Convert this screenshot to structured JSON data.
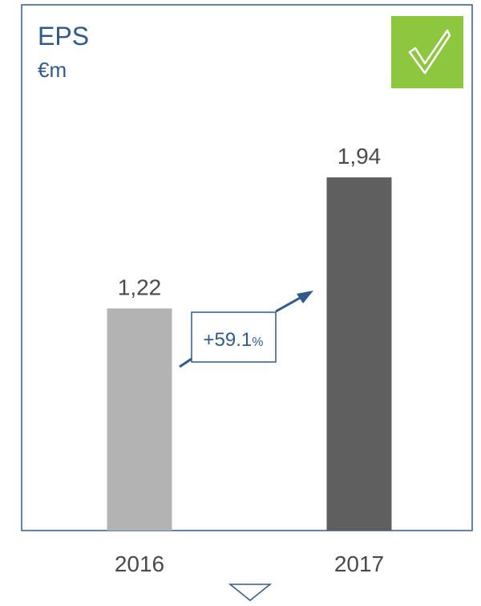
{
  "chart_data": {
    "type": "bar",
    "title": "EPS",
    "subtitle": "€m",
    "categories": [
      "2016",
      "2017"
    ],
    "values": [
      1.22,
      1.94
    ],
    "value_labels": [
      "1,22",
      "1,94"
    ],
    "bar_colors": [
      "#b3b3b3",
      "#5f5f5f"
    ],
    "ylim": [
      0,
      2.5
    ],
    "grid": false,
    "annotation": {
      "value": "+59.1",
      "unit": "%"
    }
  },
  "colors": {
    "frame": "#2f5a8f",
    "accent": "#2f5a8f",
    "check_badge": "#8dc63f"
  },
  "icons": {
    "badge": "checkmark-icon",
    "scroll": "triangle-down-icon"
  }
}
